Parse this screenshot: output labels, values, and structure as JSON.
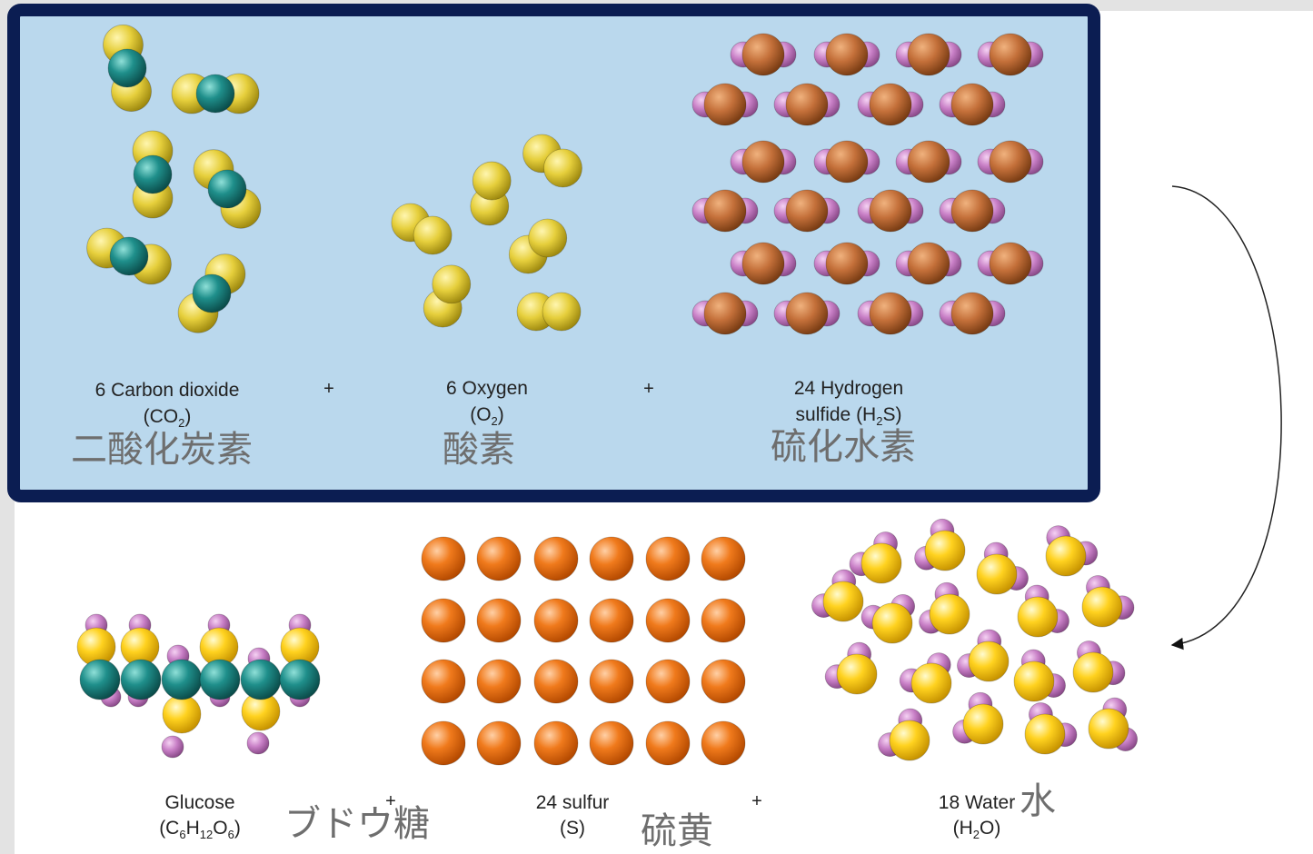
{
  "colors": {
    "slide_bg": "#e3e3e3",
    "panel_bg": "#bad8ed",
    "panel_border": "#0b1d52",
    "carbon": "#1f8f8b",
    "oxygen": "#e6cf3c",
    "sulfur_center": "#c4703a",
    "hydrogen": "#c87fc6",
    "sulfur": "#f07a1c"
  },
  "reactants": {
    "co2": {
      "line1": "6 Carbon dioxide",
      "line2_pre": "(CO",
      "line2_sub": "2",
      "line2_post": ")",
      "japanese": "二酸化炭素"
    },
    "plus1": "+",
    "o2": {
      "line1": "6 Oxygen",
      "line2_pre": "(O",
      "line2_sub": "2",
      "line2_post": ")",
      "japanese": "酸素"
    },
    "plus2": "+",
    "h2s": {
      "line1": "24 Hydrogen",
      "line2_pre": "sulfide (H",
      "line2_sub": "2",
      "line2_post": "S)",
      "japanese": "硫化水素"
    }
  },
  "products": {
    "glucose": {
      "line1": "Glucose",
      "f1": "(C",
      "s1": "6",
      "f2": "H",
      "s2": "12",
      "f3": "O",
      "s3": "6",
      "f4": ")",
      "japanese": "ブドウ糖"
    },
    "plus1": "+",
    "sulfur": {
      "line1": "24 sulfur",
      "line2": "(S)",
      "japanese": "硫黄"
    },
    "plus2": "+",
    "water": {
      "line1": "18 Water",
      "line2_pre": "(H",
      "line2_sub": "2",
      "line2_post": "O)",
      "japanese": "水"
    }
  }
}
